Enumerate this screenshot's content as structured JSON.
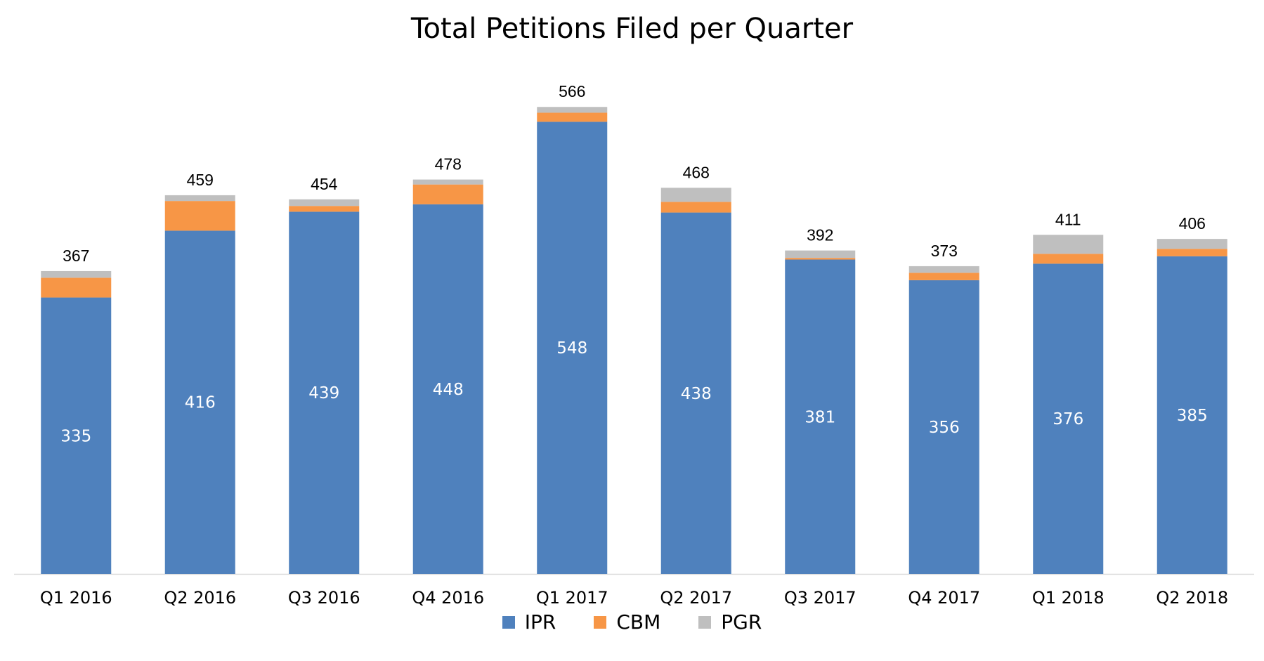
{
  "chart_data": {
    "type": "bar",
    "stacked": true,
    "title": "Total Petitions Filed per Quarter",
    "categories": [
      "Q1 2016",
      "Q2 2016",
      "Q3 2016",
      "Q4 2016",
      "Q1 2017",
      "Q2 2017",
      "Q3 2017",
      "Q4 2017",
      "Q1 2018",
      "Q2 2018"
    ],
    "series": [
      {
        "name": "IPR",
        "color": "#4F81BD",
        "values": [
          335,
          416,
          439,
          448,
          548,
          438,
          381,
          356,
          376,
          385
        ],
        "show_labels": true
      },
      {
        "name": "CBM",
        "color": "#F79646",
        "values": [
          24,
          36,
          7,
          24,
          11,
          13,
          2,
          9,
          12,
          9
        ],
        "show_labels": false
      },
      {
        "name": "PGR",
        "color": "#BFBFBF",
        "values": [
          8,
          7,
          8,
          6,
          7,
          17,
          9,
          8,
          23,
          12
        ],
        "show_labels": false
      }
    ],
    "totals": [
      367,
      459,
      454,
      478,
      566,
      468,
      392,
      373,
      411,
      406
    ],
    "ylim": [
      0,
      570
    ],
    "grid": false,
    "legend_position": "bottom"
  }
}
